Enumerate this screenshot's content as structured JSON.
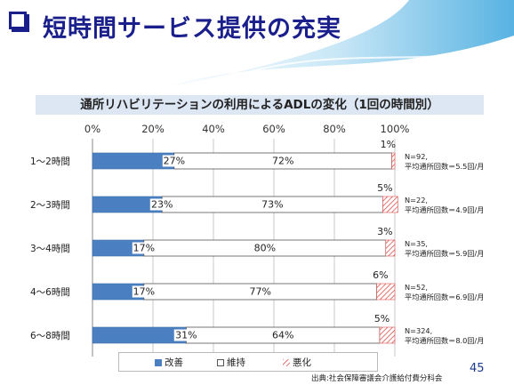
{
  "slide": {
    "title": "短時間サービス提供の充実",
    "source": "出典:社会保障審議会介護給付費分科会",
    "page_number": "45"
  },
  "chart_data": {
    "type": "bar",
    "orientation": "horizontal",
    "stacked": "percent",
    "title": "通所リハビリテーションの利用によるADLの変化（1回の時間別）",
    "xlim": [
      0,
      100
    ],
    "x_ticks": [
      "0%",
      "20%",
      "40%",
      "60%",
      "80%",
      "100%"
    ],
    "grid": true,
    "legend_position": "bottom",
    "categories": [
      "1～2時間",
      "2～3時間",
      "3～4時間",
      "4～6時間",
      "6～8時間"
    ],
    "series": [
      {
        "name": "改善",
        "values": [
          27,
          23,
          17,
          17,
          31
        ],
        "color": "#4a7fc1"
      },
      {
        "name": "維持",
        "values": [
          72,
          73,
          80,
          77,
          64
        ],
        "color": "#ffffff"
      },
      {
        "name": "悪化",
        "values": [
          1,
          5,
          3,
          6,
          5
        ],
        "color": "#d9534f",
        "pattern": "hatch"
      }
    ],
    "labels": {
      "改善": [
        "27%",
        "23%",
        "17%",
        "17%",
        "31%"
      ],
      "維持": [
        "72%",
        "73%",
        "80%",
        "77%",
        "64%"
      ],
      "悪化": [
        "1%",
        "5%",
        "3%",
        "6%",
        "5%"
      ]
    },
    "annotations": [
      [
        "N=92,",
        "平均通所回数＝5.5回/月"
      ],
      [
        "N=22,",
        "平均通所回数＝4.9回/月"
      ],
      [
        "N=35,",
        "平均通所回数＝5.9回/月"
      ],
      [
        "N=52,",
        "平均通所回数＝6.9回/月"
      ],
      [
        "N=324,",
        "平均通所回数＝8.0回/月"
      ]
    ]
  }
}
